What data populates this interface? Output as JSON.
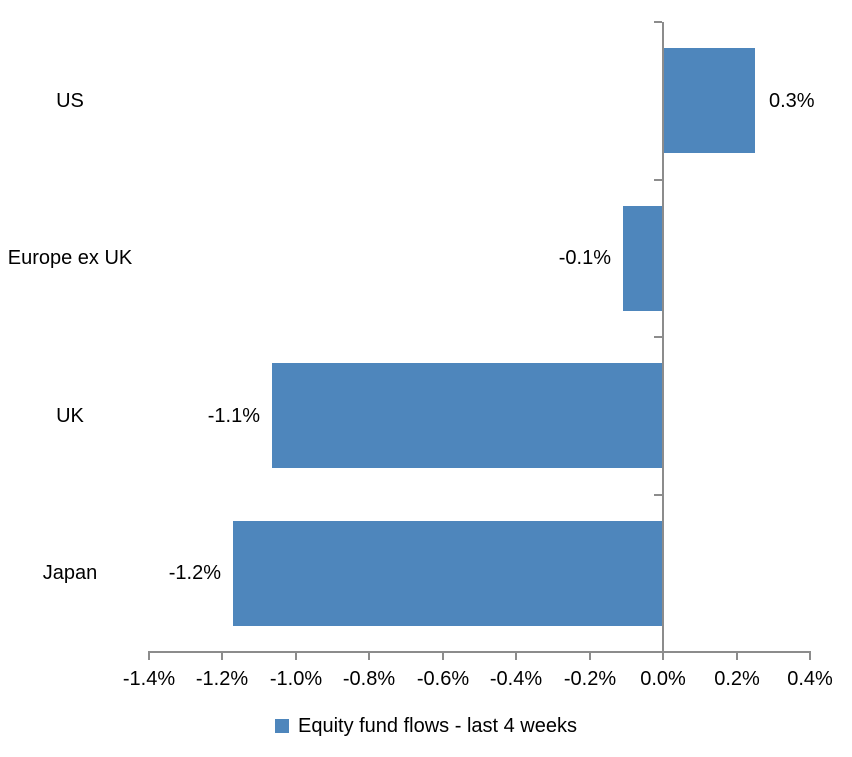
{
  "chart_data": {
    "type": "bar",
    "orientation": "horizontal",
    "title": "",
    "categories": [
      "US",
      "Europe ex UK",
      "UK",
      "Japan"
    ],
    "series": [
      {
        "name": "Equity fund flows - last 4 weeks",
        "values": [
          0.3,
          -0.1,
          -1.1,
          -1.2
        ],
        "data_labels": [
          "0.3%",
          "-0.1%",
          "-1.1%",
          "-1.2%"
        ],
        "bar_extents_pct": [
          0.25,
          -0.11,
          -1.065,
          -1.17
        ],
        "color": "#4E86BC"
      }
    ],
    "xlabel": "",
    "ylabel": "",
    "xlim": [
      -1.4,
      0.4
    ],
    "x_tick_step": 0.2,
    "x_tick_labels": [
      "-1.4%",
      "-1.2%",
      "-1.0%",
      "-0.8%",
      "-0.6%",
      "-0.4%",
      "-0.2%",
      "0.0%",
      "0.2%",
      "0.4%"
    ],
    "grid": false,
    "legend_position": "bottom",
    "axis_color": "#8C8C8C",
    "text_color": "#000000",
    "background": "#FFFFFF"
  }
}
